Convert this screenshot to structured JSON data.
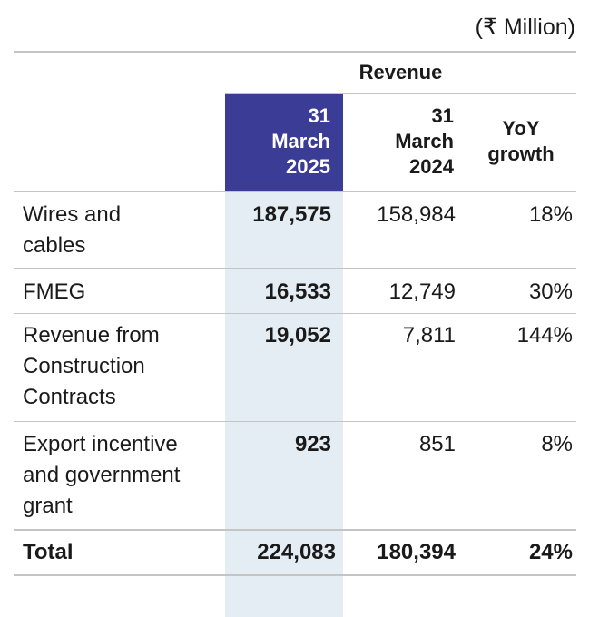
{
  "unit_note": "(₹ Million)",
  "header": {
    "group_label": "Revenue",
    "col1_lines": [
      "31",
      "March",
      "2025"
    ],
    "col2_lines": [
      "31",
      "March",
      "2024"
    ],
    "col3_lines": [
      "YoY",
      "growth"
    ]
  },
  "rows": [
    {
      "label_lines": [
        "Wires and",
        "cables"
      ],
      "fy25": "187,575",
      "fy24": "158,984",
      "yoy": "18%"
    },
    {
      "label_lines": [
        "FMEG"
      ],
      "fy25": "16,533",
      "fy24": "12,749",
      "yoy": "30%"
    },
    {
      "label_lines": [
        "Revenue from",
        "Construction",
        "Contracts"
      ],
      "fy25": "19,052",
      "fy24": "7,811",
      "yoy": "144%"
    },
    {
      "label_lines": [
        "Export incentive",
        "and government",
        "grant"
      ],
      "fy25": "923",
      "fy24": "851",
      "yoy": "8%"
    }
  ],
  "total": {
    "label": "Total",
    "fy25": "224,083",
    "fy24": "180,394",
    "yoy": "24%"
  },
  "colors": {
    "highlight_header": "#3b3c96",
    "highlight_column": "#e4edf4",
    "rule": "#c4c4c4"
  }
}
